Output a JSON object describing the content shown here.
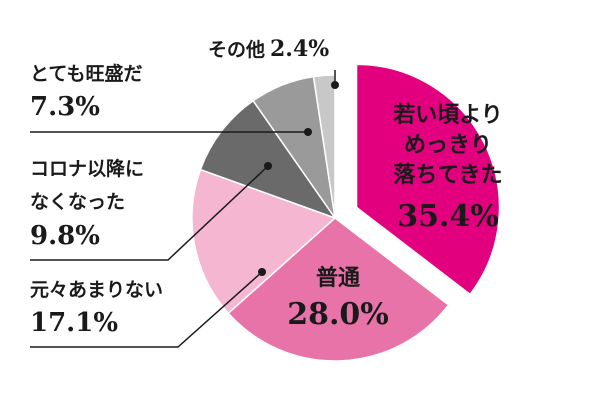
{
  "chart_data": {
    "type": "pie",
    "slices": [
      {
        "label_lines": [
          "若い頃より",
          "めっきり",
          "落ちてきた"
        ],
        "value": 35.4,
        "value_text": "35.4%",
        "color": "#e2007f"
      },
      {
        "label_lines": [
          "普通"
        ],
        "value": 28.0,
        "value_text": "28.0%",
        "color": "#e873a8"
      },
      {
        "label_lines": [
          "元々あまりない"
        ],
        "value": 17.1,
        "value_text": "17.1%",
        "color": "#f4b6d0"
      },
      {
        "label_lines": [
          "コロナ以降に",
          "なくなった"
        ],
        "value": 9.8,
        "value_text": "9.8%",
        "color": "#6a6a6a"
      },
      {
        "label_lines": [
          "とても旺盛だ"
        ],
        "value": 7.3,
        "value_text": "7.3%",
        "color": "#9a9a9a"
      },
      {
        "label_lines": [
          "その他"
        ],
        "value": 2.4,
        "value_text": "2.4%",
        "color": "#c8c8c8"
      }
    ],
    "exploded_slice": 0,
    "label_placement": "leader-lines-left"
  }
}
